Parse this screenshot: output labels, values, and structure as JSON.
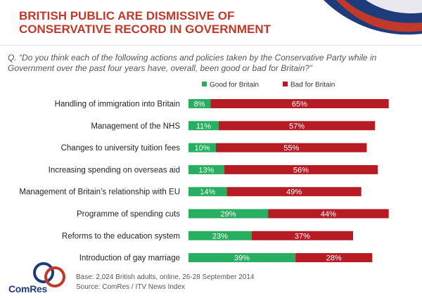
{
  "header": {
    "title_line1": "BRITISH PUBLIC ARE DISMISSIVE OF",
    "title_line2": "CONSERVATIVE RECORD IN GOVERNMENT"
  },
  "question_line1": "Q. “Do you think each of the following actions and policies taken by the Conservative Party while in",
  "question_line2": "Government over the past four years have, overall, been good or bad for Britain?”",
  "footer": {
    "base": "Base: 2,024 British adults, online, 26-28 September 2014",
    "source": "Source: ComRes / ITV News Index"
  },
  "logo": {
    "text": "ComRes"
  },
  "colors": {
    "good": "#27ae60",
    "bad": "#b71c25",
    "title": "#c0392b",
    "brand": "#1f3c7a"
  },
  "chart_data": {
    "type": "bar",
    "orientation": "horizontal",
    "stacked": true,
    "categories": [
      "Handling of immigration into Britain",
      "Management of the NHS",
      "Changes to university tuition fees",
      "Increasing spending on overseas aid",
      "Management of Britain’s relationship with EU",
      "Programme of spending cuts",
      "Reforms to the education system",
      "Introduction of gay marriage"
    ],
    "series": [
      {
        "name": "Good for Britain",
        "color": "#27ae60",
        "values": [
          8,
          11,
          10,
          13,
          14,
          29,
          23,
          39
        ]
      },
      {
        "name": "Bad for Britain",
        "color": "#b71c25",
        "values": [
          65,
          57,
          55,
          56,
          49,
          44,
          37,
          28
        ]
      }
    ],
    "value_suffix": "%",
    "legend_position": "top",
    "grid": false
  }
}
